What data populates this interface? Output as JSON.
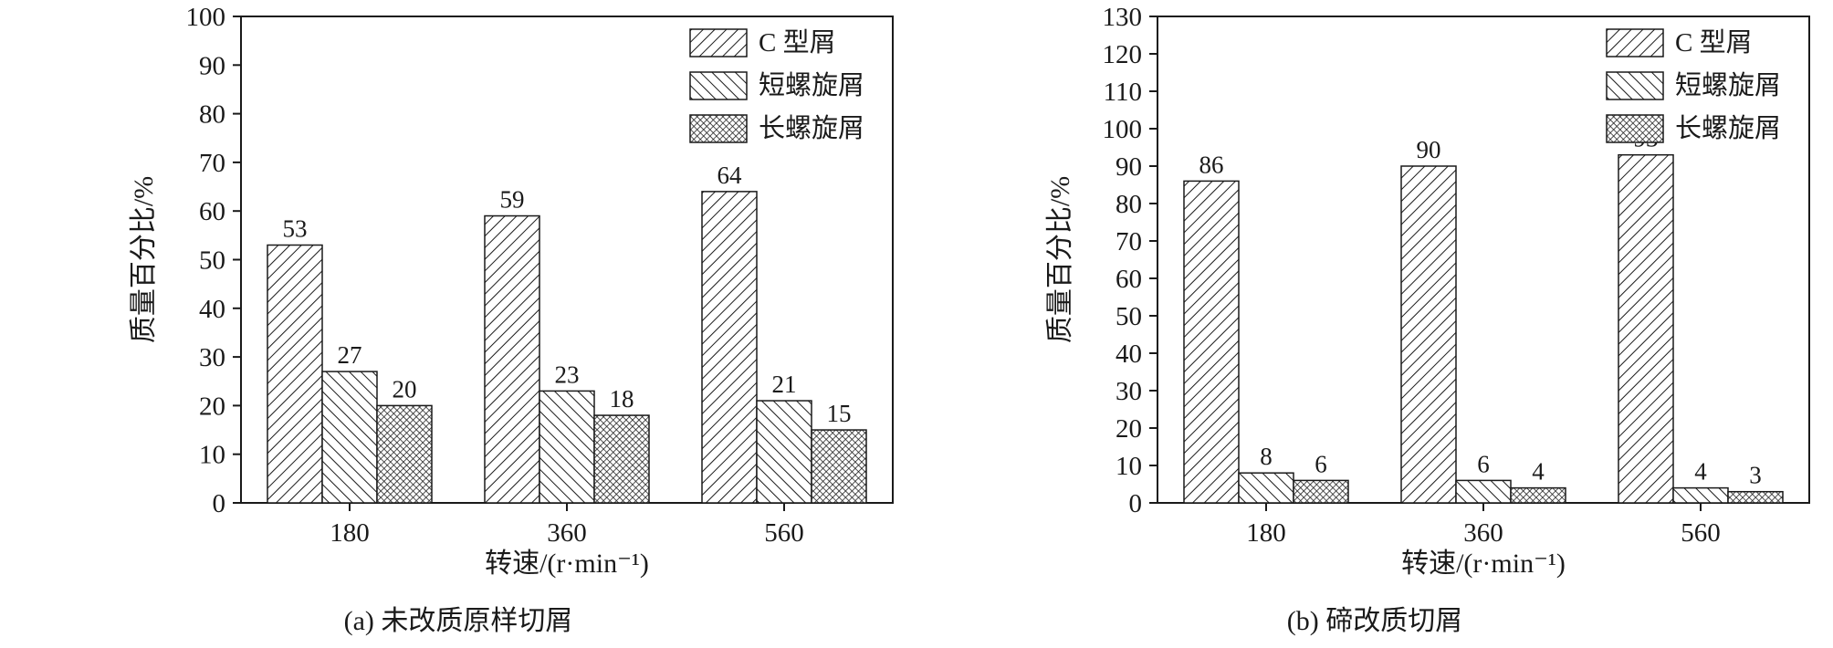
{
  "colors": {
    "axis": "#1a1a1a",
    "hatch": "#1a1a1a",
    "background": "#ffffff"
  },
  "chart_data": [
    {
      "type": "bar",
      "title": "",
      "caption": "(a) 未改质原样切屑",
      "xlabel": "转速/(r·min⁻¹)",
      "ylabel": "质量百分比/%",
      "categories": [
        "180",
        "360",
        "560"
      ],
      "series": [
        {
          "name": "C 型屑",
          "hatch": "diag-up",
          "values": [
            53,
            59,
            64
          ]
        },
        {
          "name": "短螺旋屑",
          "hatch": "diag-down",
          "values": [
            27,
            23,
            21
          ]
        },
        {
          "name": "长螺旋屑",
          "hatch": "cross",
          "values": [
            20,
            18,
            15
          ]
        }
      ],
      "ylim": [
        0,
        100
      ],
      "ytick_step": 10,
      "grid": false,
      "legend_position": "top-right",
      "bar_value_labels": true
    },
    {
      "type": "bar",
      "title": "",
      "caption": "(b) 碲改质切屑",
      "xlabel": "转速/(r·min⁻¹)",
      "ylabel": "质量百分比/%",
      "categories": [
        "180",
        "360",
        "560"
      ],
      "series": [
        {
          "name": "C 型屑",
          "hatch": "diag-up",
          "values": [
            86,
            90,
            93
          ]
        },
        {
          "name": "短螺旋屑",
          "hatch": "diag-down",
          "values": [
            8,
            6,
            4
          ]
        },
        {
          "name": "长螺旋屑",
          "hatch": "cross",
          "values": [
            6,
            4,
            3
          ]
        }
      ],
      "ylim": [
        0,
        130
      ],
      "ytick_step": 10,
      "grid": false,
      "legend_position": "top-right",
      "bar_value_labels": true
    }
  ]
}
